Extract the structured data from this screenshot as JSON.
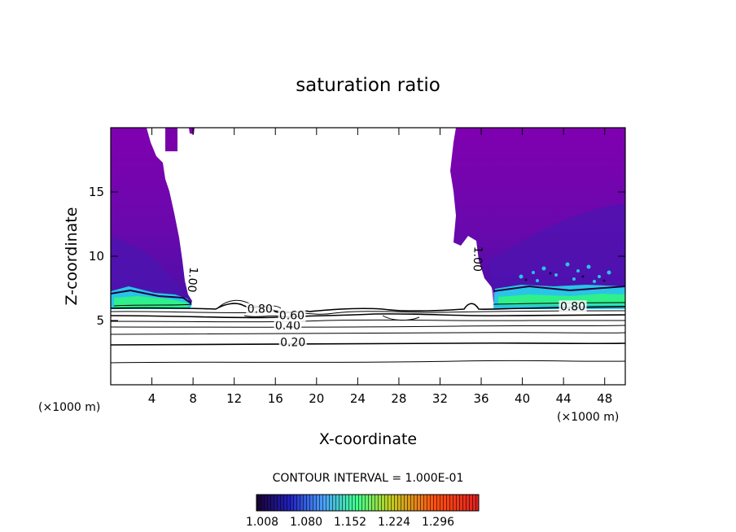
{
  "chart_data": {
    "type": "heatmap",
    "title": "saturation ratio",
    "xlabel": "X-coordinate",
    "ylabel": "Z-coordinate",
    "x_unit": "(×1000 m)",
    "x_unit_right": "(×1000 m)",
    "xlim": [
      0,
      50
    ],
    "ylim": [
      0,
      20
    ],
    "x_ticks": [
      4,
      8,
      12,
      16,
      20,
      24,
      28,
      32,
      36,
      40,
      44,
      48
    ],
    "y_ticks": [
      5,
      10,
      15
    ],
    "contour_interval_label": "CONTOUR INTERVAL = 1.000E-01",
    "colorbar": {
      "labels": [
        "1.008",
        "1.080",
        "1.152",
        "1.224",
        "1.296"
      ],
      "colors": [
        "#1a0030",
        "#2020c0",
        "#4aa0ff",
        "#40ff90",
        "#c0d020",
        "#ff5010",
        "#e02020"
      ]
    },
    "contour_labels": [
      {
        "text": "0.20",
        "x": 17.7,
        "y": 3.0
      },
      {
        "text": "0.40",
        "x": 17.2,
        "y": 4.3
      },
      {
        "text": "0.60",
        "x": 17.6,
        "y": 5.1
      },
      {
        "text": "0.80",
        "x": 14.5,
        "y": 5.6
      },
      {
        "text": "0.80",
        "x": 44.9,
        "y": 5.8
      },
      {
        "text": "1.00",
        "x": 7.6,
        "y": 8.2
      },
      {
        "text": "1.00",
        "x": 35.3,
        "y": 9.8
      }
    ],
    "colors": {
      "supersaturated": "#7a00aa",
      "deep": "#4b0ea8",
      "cyan": "#29c5e6",
      "green": "#2ff08a",
      "dark_edge": "#1a0040"
    }
  }
}
